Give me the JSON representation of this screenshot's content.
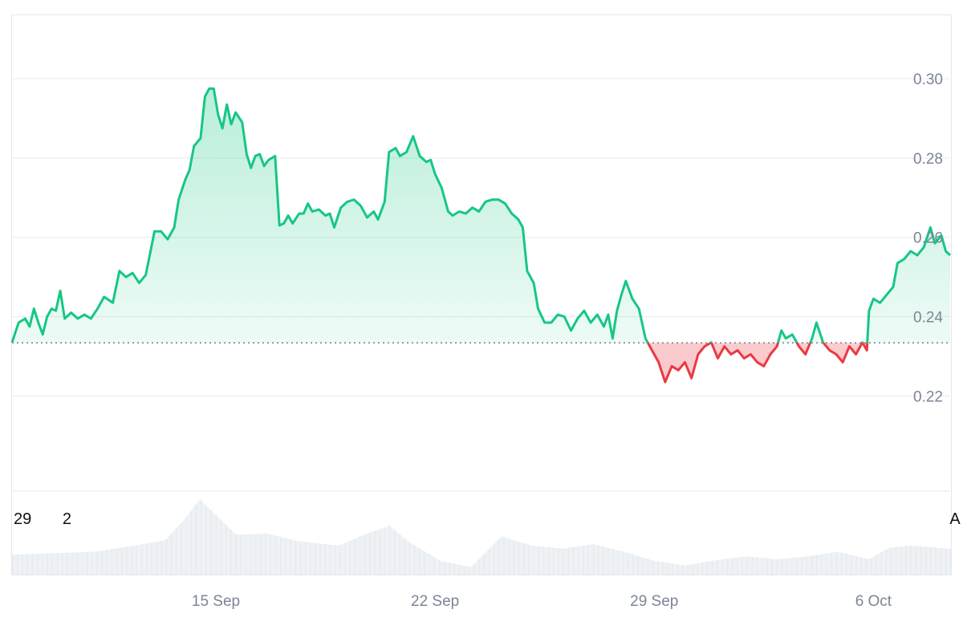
{
  "chart_data": {
    "type": "area",
    "baseline": 0.2334,
    "colors": {
      "up": "#16c784",
      "down": "#ea3943",
      "up_fill": "#16c784",
      "down_fill": "#ea3943",
      "grid": "#e8eaed",
      "volume": "#eff2f5",
      "baseline_dots": "#6b7280"
    },
    "ylim": [
      0.196,
      0.316
    ],
    "y_ticks": [
      {
        "value": 0.3,
        "label": "0.30"
      },
      {
        "value": 0.28,
        "label": "0.28"
      },
      {
        "value": 0.26,
        "label": "0.26"
      },
      {
        "value": 0.24,
        "label": "0.24"
      },
      {
        "value": 0.22,
        "label": "0.22"
      }
    ],
    "xlim": [
      0,
      42.8
    ],
    "x_ticks": [
      {
        "day": 9.3,
        "label": "15 Sep"
      },
      {
        "day": 19.3,
        "label": "22 Sep"
      },
      {
        "day": 29.3,
        "label": "29 Sep"
      },
      {
        "day": 39.3,
        "label": "6 Oct"
      }
    ],
    "edge_labels": [
      {
        "day": 0.4,
        "label": "29"
      },
      {
        "day": 2.3,
        "label": "2"
      },
      {
        "day": 42.6,
        "label": "A"
      }
    ],
    "price_series": {
      "name": "",
      "points": [
        [
          0.0,
          0.2335
        ],
        [
          0.3,
          0.2385
        ],
        [
          0.6,
          0.2395
        ],
        [
          0.8,
          0.2375
        ],
        [
          1.0,
          0.242
        ],
        [
          1.2,
          0.2385
        ],
        [
          1.4,
          0.2355
        ],
        [
          1.6,
          0.24
        ],
        [
          1.8,
          0.242
        ],
        [
          2.0,
          0.2415
        ],
        [
          2.2,
          0.2465
        ],
        [
          2.4,
          0.2395
        ],
        [
          2.7,
          0.241
        ],
        [
          3.0,
          0.2395
        ],
        [
          3.3,
          0.2405
        ],
        [
          3.6,
          0.2395
        ],
        [
          3.9,
          0.242
        ],
        [
          4.2,
          0.245
        ],
        [
          4.6,
          0.2435
        ],
        [
          4.9,
          0.2515
        ],
        [
          5.2,
          0.25
        ],
        [
          5.5,
          0.251
        ],
        [
          5.8,
          0.2485
        ],
        [
          6.1,
          0.2505
        ],
        [
          6.3,
          0.256
        ],
        [
          6.5,
          0.2615
        ],
        [
          6.8,
          0.2615
        ],
        [
          7.1,
          0.2595
        ],
        [
          7.4,
          0.2625
        ],
        [
          7.6,
          0.2695
        ],
        [
          7.9,
          0.2745
        ],
        [
          8.1,
          0.277
        ],
        [
          8.3,
          0.283
        ],
        [
          8.6,
          0.285
        ],
        [
          8.8,
          0.2955
        ],
        [
          9.0,
          0.2975
        ],
        [
          9.2,
          0.2975
        ],
        [
          9.4,
          0.291
        ],
        [
          9.6,
          0.2875
        ],
        [
          9.8,
          0.2935
        ],
        [
          10.0,
          0.2885
        ],
        [
          10.2,
          0.2915
        ],
        [
          10.5,
          0.289
        ],
        [
          10.7,
          0.281
        ],
        [
          10.9,
          0.2775
        ],
        [
          11.1,
          0.2805
        ],
        [
          11.3,
          0.281
        ],
        [
          11.5,
          0.278
        ],
        [
          11.7,
          0.2795
        ],
        [
          12.0,
          0.2805
        ],
        [
          12.2,
          0.263
        ],
        [
          12.4,
          0.2635
        ],
        [
          12.6,
          0.2655
        ],
        [
          12.8,
          0.2635
        ],
        [
          13.1,
          0.266
        ],
        [
          13.3,
          0.266
        ],
        [
          13.5,
          0.2685
        ],
        [
          13.7,
          0.2665
        ],
        [
          14.0,
          0.267
        ],
        [
          14.3,
          0.2655
        ],
        [
          14.5,
          0.266
        ],
        [
          14.7,
          0.2625
        ],
        [
          15.0,
          0.2675
        ],
        [
          15.3,
          0.269
        ],
        [
          15.6,
          0.2695
        ],
        [
          15.9,
          0.268
        ],
        [
          16.2,
          0.265
        ],
        [
          16.5,
          0.2665
        ],
        [
          16.7,
          0.2645
        ],
        [
          17.0,
          0.269
        ],
        [
          17.2,
          0.2815
        ],
        [
          17.5,
          0.2825
        ],
        [
          17.7,
          0.2805
        ],
        [
          18.0,
          0.2815
        ],
        [
          18.3,
          0.2855
        ],
        [
          18.6,
          0.2805
        ],
        [
          18.9,
          0.279
        ],
        [
          19.1,
          0.2795
        ],
        [
          19.3,
          0.276
        ],
        [
          19.6,
          0.2725
        ],
        [
          19.9,
          0.2665
        ],
        [
          20.1,
          0.2655
        ],
        [
          20.4,
          0.2665
        ],
        [
          20.7,
          0.266
        ],
        [
          21.0,
          0.2675
        ],
        [
          21.3,
          0.2665
        ],
        [
          21.6,
          0.269
        ],
        [
          21.9,
          0.2695
        ],
        [
          22.2,
          0.2695
        ],
        [
          22.5,
          0.2685
        ],
        [
          22.8,
          0.266
        ],
        [
          23.1,
          0.2645
        ],
        [
          23.3,
          0.2625
        ],
        [
          23.5,
          0.2515
        ],
        [
          23.8,
          0.2485
        ],
        [
          24.0,
          0.242
        ],
        [
          24.3,
          0.2385
        ],
        [
          24.6,
          0.2385
        ],
        [
          24.9,
          0.2405
        ],
        [
          25.2,
          0.24
        ],
        [
          25.5,
          0.2365
        ],
        [
          25.8,
          0.2395
        ],
        [
          26.1,
          0.2415
        ],
        [
          26.4,
          0.2385
        ],
        [
          26.7,
          0.2405
        ],
        [
          27.0,
          0.2375
        ],
        [
          27.2,
          0.2405
        ],
        [
          27.4,
          0.2345
        ],
        [
          27.6,
          0.2415
        ],
        [
          27.8,
          0.2455
        ],
        [
          28.0,
          0.249
        ],
        [
          28.3,
          0.2445
        ],
        [
          28.6,
          0.242
        ],
        [
          28.9,
          0.2345
        ],
        [
          29.2,
          0.2315
        ],
        [
          29.5,
          0.2285
        ],
        [
          29.8,
          0.2235
        ],
        [
          30.1,
          0.2275
        ],
        [
          30.4,
          0.2265
        ],
        [
          30.7,
          0.2285
        ],
        [
          31.0,
          0.2245
        ],
        [
          31.3,
          0.2305
        ],
        [
          31.6,
          0.2325
        ],
        [
          31.9,
          0.2335
        ],
        [
          32.2,
          0.2295
        ],
        [
          32.5,
          0.2325
        ],
        [
          32.8,
          0.2305
        ],
        [
          33.1,
          0.2315
        ],
        [
          33.4,
          0.2295
        ],
        [
          33.7,
          0.2305
        ],
        [
          34.0,
          0.2285
        ],
        [
          34.3,
          0.2275
        ],
        [
          34.6,
          0.2305
        ],
        [
          34.9,
          0.2325
        ],
        [
          35.1,
          0.2365
        ],
        [
          35.3,
          0.2345
        ],
        [
          35.6,
          0.2355
        ],
        [
          35.9,
          0.2325
        ],
        [
          36.2,
          0.2305
        ],
        [
          36.5,
          0.2345
        ],
        [
          36.7,
          0.2385
        ],
        [
          37.0,
          0.2335
        ],
        [
          37.3,
          0.2315
        ],
        [
          37.6,
          0.2305
        ],
        [
          37.9,
          0.2285
        ],
        [
          38.2,
          0.2325
        ],
        [
          38.5,
          0.2305
        ],
        [
          38.8,
          0.2335
        ],
        [
          39.0,
          0.2315
        ],
        [
          39.1,
          0.2415
        ],
        [
          39.3,
          0.2445
        ],
        [
          39.6,
          0.2435
        ],
        [
          39.9,
          0.2455
        ],
        [
          40.2,
          0.2475
        ],
        [
          40.4,
          0.2535
        ],
        [
          40.7,
          0.2545
        ],
        [
          41.0,
          0.2565
        ],
        [
          41.3,
          0.2555
        ],
        [
          41.6,
          0.2575
        ],
        [
          41.9,
          0.2625
        ],
        [
          42.1,
          0.2585
        ],
        [
          42.4,
          0.2605
        ],
        [
          42.6,
          0.2565
        ],
        [
          42.8,
          0.2555
        ]
      ]
    },
    "volume_series": {
      "max": 1.0,
      "points": [
        [
          0,
          0.26
        ],
        [
          2,
          0.28
        ],
        [
          4,
          0.3
        ],
        [
          6,
          0.38
        ],
        [
          7.5,
          0.45
        ],
        [
          8.5,
          0.74
        ],
        [
          9.2,
          0.99
        ],
        [
          10,
          0.78
        ],
        [
          11,
          0.52
        ],
        [
          12.5,
          0.54
        ],
        [
          14,
          0.44
        ],
        [
          16,
          0.38
        ],
        [
          17.5,
          0.55
        ],
        [
          18.5,
          0.64
        ],
        [
          19.5,
          0.42
        ],
        [
          21,
          0.18
        ],
        [
          22.5,
          0.1
        ],
        [
          24,
          0.5
        ],
        [
          25.5,
          0.38
        ],
        [
          27,
          0.34
        ],
        [
          28.5,
          0.4
        ],
        [
          30,
          0.3
        ],
        [
          31.5,
          0.18
        ],
        [
          33,
          0.12
        ],
        [
          34.5,
          0.19
        ],
        [
          36,
          0.24
        ],
        [
          37.5,
          0.2
        ],
        [
          39,
          0.24
        ],
        [
          40.5,
          0.3
        ],
        [
          42,
          0.2
        ],
        [
          43,
          0.35
        ],
        [
          44,
          0.38
        ],
        [
          45,
          0.36
        ],
        [
          46,
          0.34
        ]
      ]
    }
  }
}
